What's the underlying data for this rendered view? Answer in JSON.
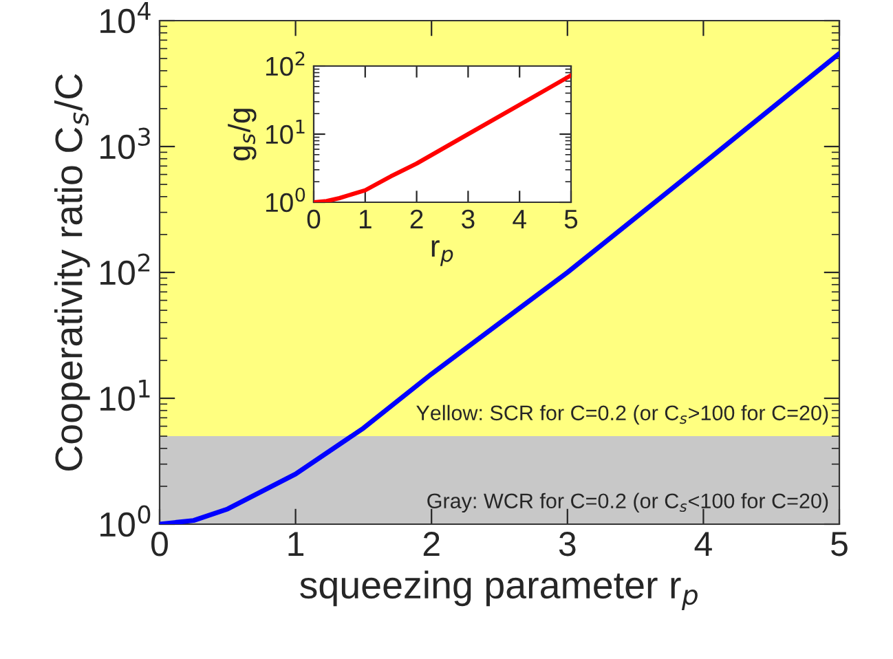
{
  "chart_data": [
    {
      "type": "line",
      "xlabel": "squeezing parameter r$_{p}$",
      "ylabel": "Cooperativity ratio C$_{s}$/C",
      "log": "y",
      "xlim": [
        0,
        5
      ],
      "ylim": [
        1,
        10000
      ],
      "xticks": [
        0,
        1,
        2,
        3,
        4,
        5
      ],
      "yticks": [
        {
          "value": 1,
          "label": "10$^{0}$"
        },
        {
          "value": 10,
          "label": "10$^{1}$"
        },
        {
          "value": 100,
          "label": "10$^{2}$"
        },
        {
          "value": 1000,
          "label": "10$^{3}$"
        },
        {
          "value": 10000,
          "label": "10$^{4}$"
        }
      ],
      "grid": false,
      "legend": false,
      "x": [
        0,
        0.25,
        0.5,
        1,
        1.5,
        2,
        3,
        4,
        5
      ],
      "series": [
        {
          "color": "#0000ff",
          "values": [
            1,
            1.07,
            1.32,
            2.5,
            5.8,
            15.6,
            100,
            735,
            5480
          ]
        }
      ],
      "bands": [
        {
          "axis": "y",
          "from": 1,
          "to": 5,
          "color": "#c8c8c8",
          "label": "Gray: WCR for C=0.2 (or C$_{s}$<100 for C=20)"
        },
        {
          "axis": "y",
          "from": 5,
          "to": 10000,
          "color": "#ffff80",
          "label": "Yellow: SCR for C=0.2 (or C$_{s}$>100 for C=20)"
        }
      ]
    },
    {
      "type": "line",
      "xlabel": "r$_{p}$",
      "ylabel": "g$_{s}$/g",
      "log": "y",
      "xlim": [
        0,
        5
      ],
      "ylim": [
        1,
        100
      ],
      "xticks": [
        0,
        1,
        2,
        3,
        4,
        5
      ],
      "yticks": [
        {
          "value": 1,
          "label": "10$^{0}$"
        },
        {
          "value": 10,
          "label": "10$^{1}$"
        },
        {
          "value": 100,
          "label": "10$^{2}$"
        }
      ],
      "grid": false,
      "legend": false,
      "x": [
        0,
        0.25,
        0.5,
        1,
        1.5,
        2,
        3,
        4,
        5
      ],
      "series": [
        {
          "color": "#ff0000",
          "values": [
            1,
            1.04,
            1.15,
            1.5,
            2.4,
            3.7,
            10,
            27,
            73
          ]
        }
      ]
    }
  ]
}
